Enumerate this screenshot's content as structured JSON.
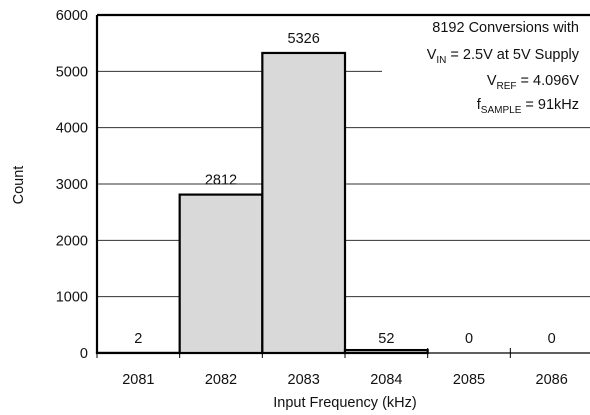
{
  "chart_data": {
    "type": "bar",
    "title": "",
    "xlabel": "Input Frequency (kHz)",
    "ylabel": "Count",
    "categories": [
      "2081",
      "2082",
      "2083",
      "2084",
      "2085",
      "2086"
    ],
    "values": [
      2,
      2812,
      5326,
      52,
      0,
      0
    ],
    "data_labels": [
      "2",
      "2812",
      "5326",
      "52",
      "0",
      "0"
    ],
    "ylim": [
      0,
      6000
    ],
    "yticks": [
      "0",
      "1000",
      "2000",
      "3000",
      "4000",
      "5000",
      "6000"
    ],
    "grid": "horizontal",
    "bar_color": "#d9d9d9",
    "annotation": {
      "line1": "8192 Conversions with",
      "line2": {
        "main": "V",
        "sub": "IN",
        "rest": " = 2.5V at 5V Supply"
      },
      "line3": {
        "main": "V",
        "sub": "REF",
        "rest": " = 4.096V"
      },
      "line4": {
        "main": "f",
        "sub": "SAMPLE",
        "rest": " = 91kHz"
      }
    }
  }
}
